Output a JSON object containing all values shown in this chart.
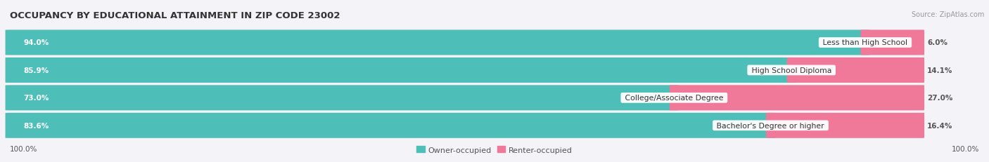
{
  "title": "OCCUPANCY BY EDUCATIONAL ATTAINMENT IN ZIP CODE 23002",
  "source": "Source: ZipAtlas.com",
  "categories": [
    "Less than High School",
    "High School Diploma",
    "College/Associate Degree",
    "Bachelor's Degree or higher"
  ],
  "owner_pct": [
    94.0,
    85.9,
    73.0,
    83.6
  ],
  "renter_pct": [
    6.0,
    14.1,
    27.0,
    16.4
  ],
  "owner_color": "#4DBFB8",
  "renter_color": "#F07898",
  "bar_bg_color": "#E4E4EA",
  "background_color": "#F4F4F8",
  "title_fontsize": 9.5,
  "label_fontsize": 7.8,
  "pct_fontsize": 7.5,
  "axis_label_fontsize": 7.5,
  "legend_fontsize": 8.0,
  "bar_height": 0.72,
  "bar_gap": 0.08,
  "left_pct_label": "100.0%",
  "right_pct_label": "100.0%"
}
